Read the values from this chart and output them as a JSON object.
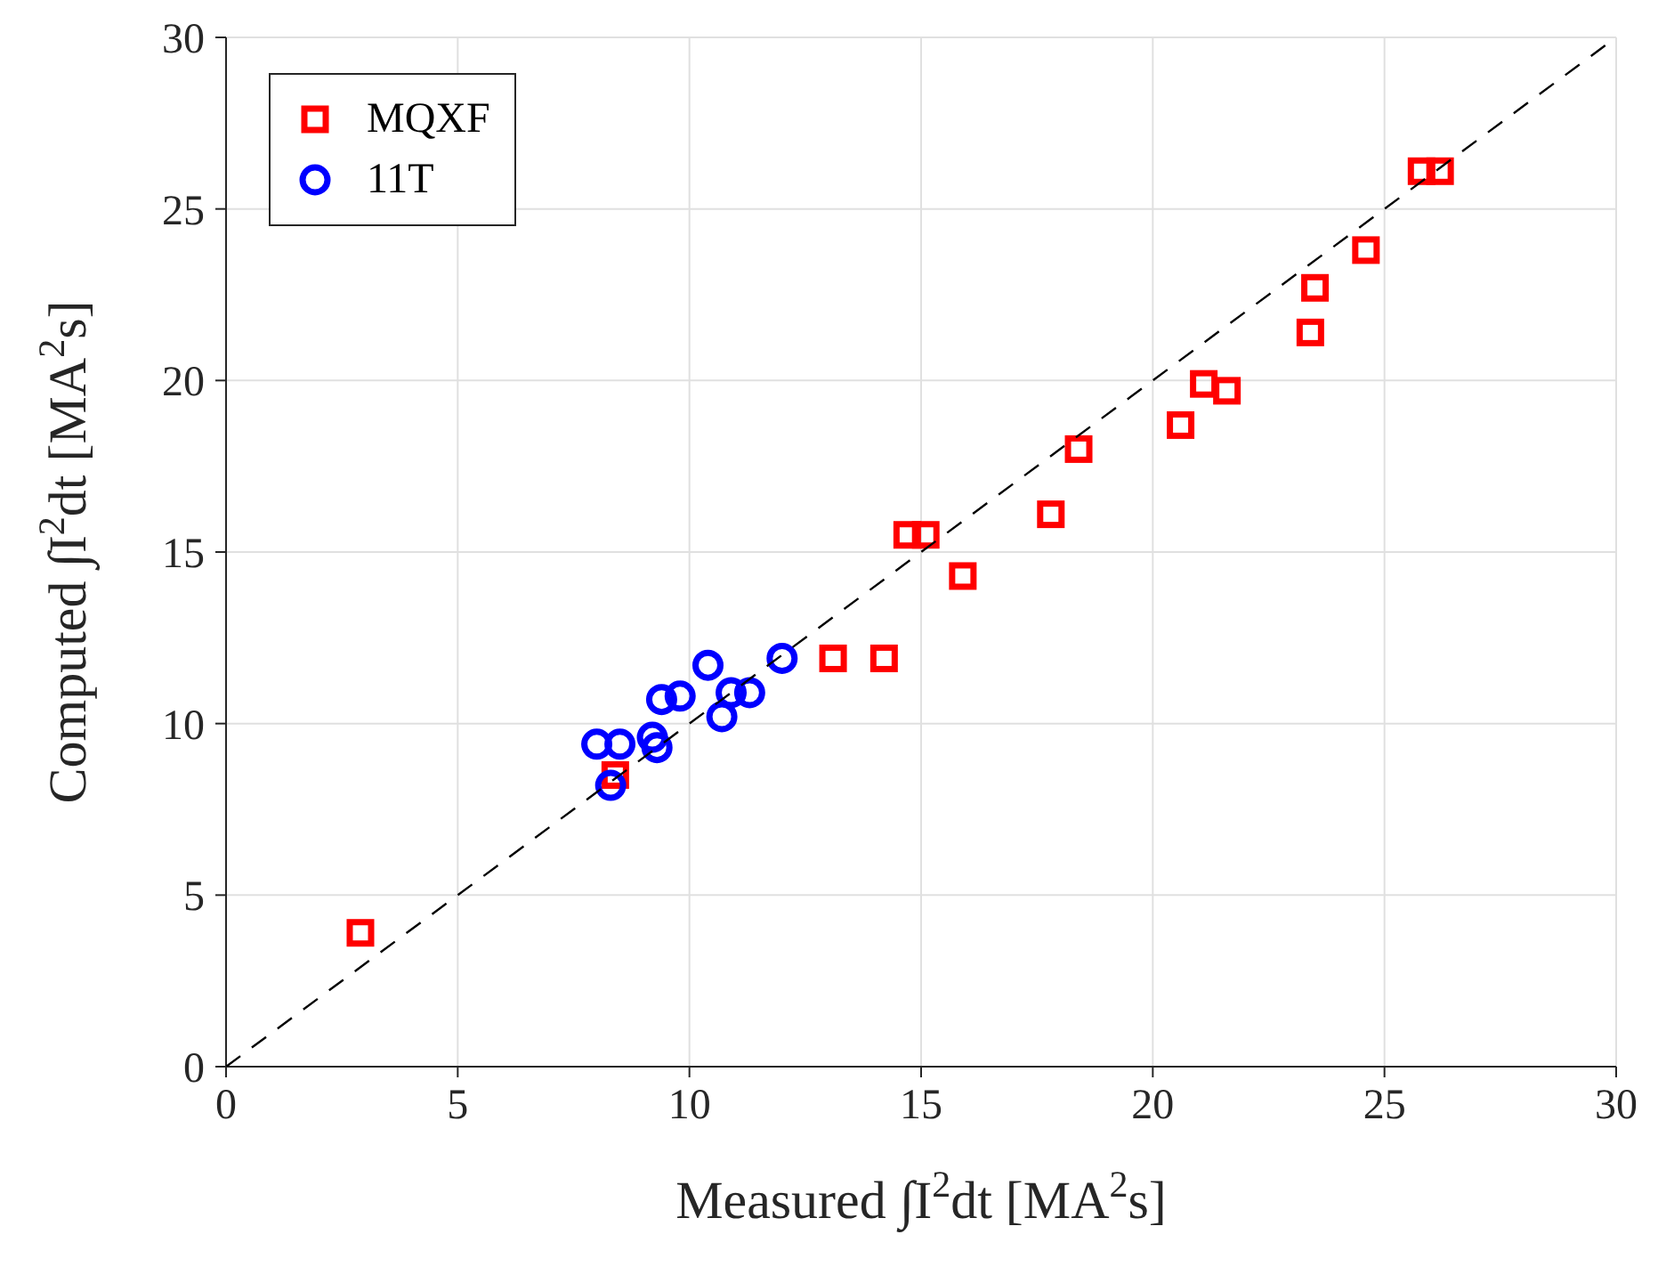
{
  "chart_data": {
    "type": "scatter",
    "xlabel": "Measured ∫I$^{2}$dt  [MA$^{2}$s]",
    "ylabel": "Computed ∫I$^{2}$dt  [MA$^{2}$s]",
    "xlim": [
      0,
      30
    ],
    "ylim": [
      0,
      30
    ],
    "xticks": [
      0,
      5,
      10,
      15,
      20,
      25,
      30
    ],
    "yticks": [
      0,
      5,
      10,
      15,
      20,
      25,
      30
    ],
    "grid": true,
    "legend": "top left",
    "series": [
      {
        "name": "MQXF",
        "color": "#ff0000",
        "marker": "square",
        "x": [
          2.9,
          8.4,
          13.1,
          14.2,
          14.7,
          15.1,
          15.9,
          17.8,
          18.4,
          20.6,
          21.1,
          21.6,
          23.4,
          23.5,
          24.6,
          25.8,
          26.2
        ],
        "values": [
          3.9,
          8.5,
          11.9,
          11.9,
          15.5,
          15.5,
          14.3,
          16.1,
          18.0,
          18.7,
          19.9,
          19.7,
          21.4,
          22.7,
          23.8,
          26.1,
          26.1
        ]
      },
      {
        "name": "11T",
        "color": "#0000ff",
        "marker": "circle",
        "x": [
          8.0,
          8.5,
          8.3,
          9.2,
          9.3,
          9.4,
          9.8,
          10.4,
          10.9,
          11.3,
          10.7,
          12.0
        ],
        "values": [
          9.4,
          9.4,
          8.2,
          9.6,
          9.3,
          10.7,
          10.8,
          11.7,
          10.9,
          10.9,
          10.2,
          11.9
        ]
      },
      {
        "type": "line",
        "color": "#000000",
        "line_style": "dashed",
        "marker": "none",
        "x": [
          0,
          30
        ],
        "values": [
          0,
          30
        ]
      }
    ]
  }
}
